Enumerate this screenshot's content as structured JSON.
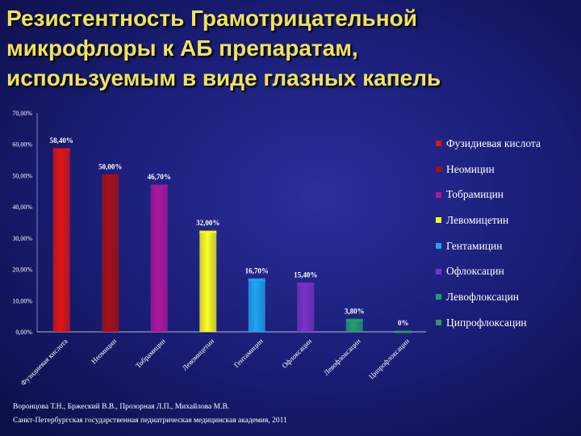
{
  "title_lines": [
    "Резистентность Грамотрицательной",
    "микрофлоры к АБ препаратам,",
    "используемым в виде глазных капель"
  ],
  "chart_data": {
    "type": "bar",
    "categories": [
      "Фузидиевая кислота",
      "Неомицин",
      "Тобрамицин",
      "Левомицетин",
      "Гентамицин",
      "Офлоксацин",
      "Левофлоксацин",
      "Ципрофлоксацин"
    ],
    "values": [
      58.4,
      50.0,
      46.7,
      32.0,
      16.7,
      15.4,
      3.8,
      0
    ],
    "value_labels": [
      "58,40%",
      "50,00%",
      "46,70%",
      "32,00%",
      "16,70%",
      "15,40%",
      "3,80%",
      "0%"
    ],
    "colors": [
      "#e01515",
      "#a80f12",
      "#b0169c",
      "#ffff1e",
      "#1ea6f2",
      "#7a32c4",
      "#1fa06a",
      "#2d9a5a"
    ],
    "y_ticks": [
      "0,00%",
      "10,00%",
      "20,00%",
      "30,00%",
      "40,00%",
      "50,00%",
      "60,00%",
      "70,00%"
    ],
    "ylim": [
      0,
      70
    ],
    "grid": false,
    "legend": {
      "position": "right",
      "entries": [
        "Фузидиевая кислота",
        "Неомицин",
        "Тобрамицин",
        "Левомицетин",
        "Гентамицин",
        "Офлоксацин",
        "Левофлоксацин",
        "Ципрофлоксацин"
      ]
    }
  },
  "footer": {
    "authors": "Воронцова Т.Н., Бржеский В.В., Прозорная Л.П., Михайлова М.В.",
    "institution": "Санкт-Петербургская государственная педиатрическая медицинская академия, 2011"
  }
}
